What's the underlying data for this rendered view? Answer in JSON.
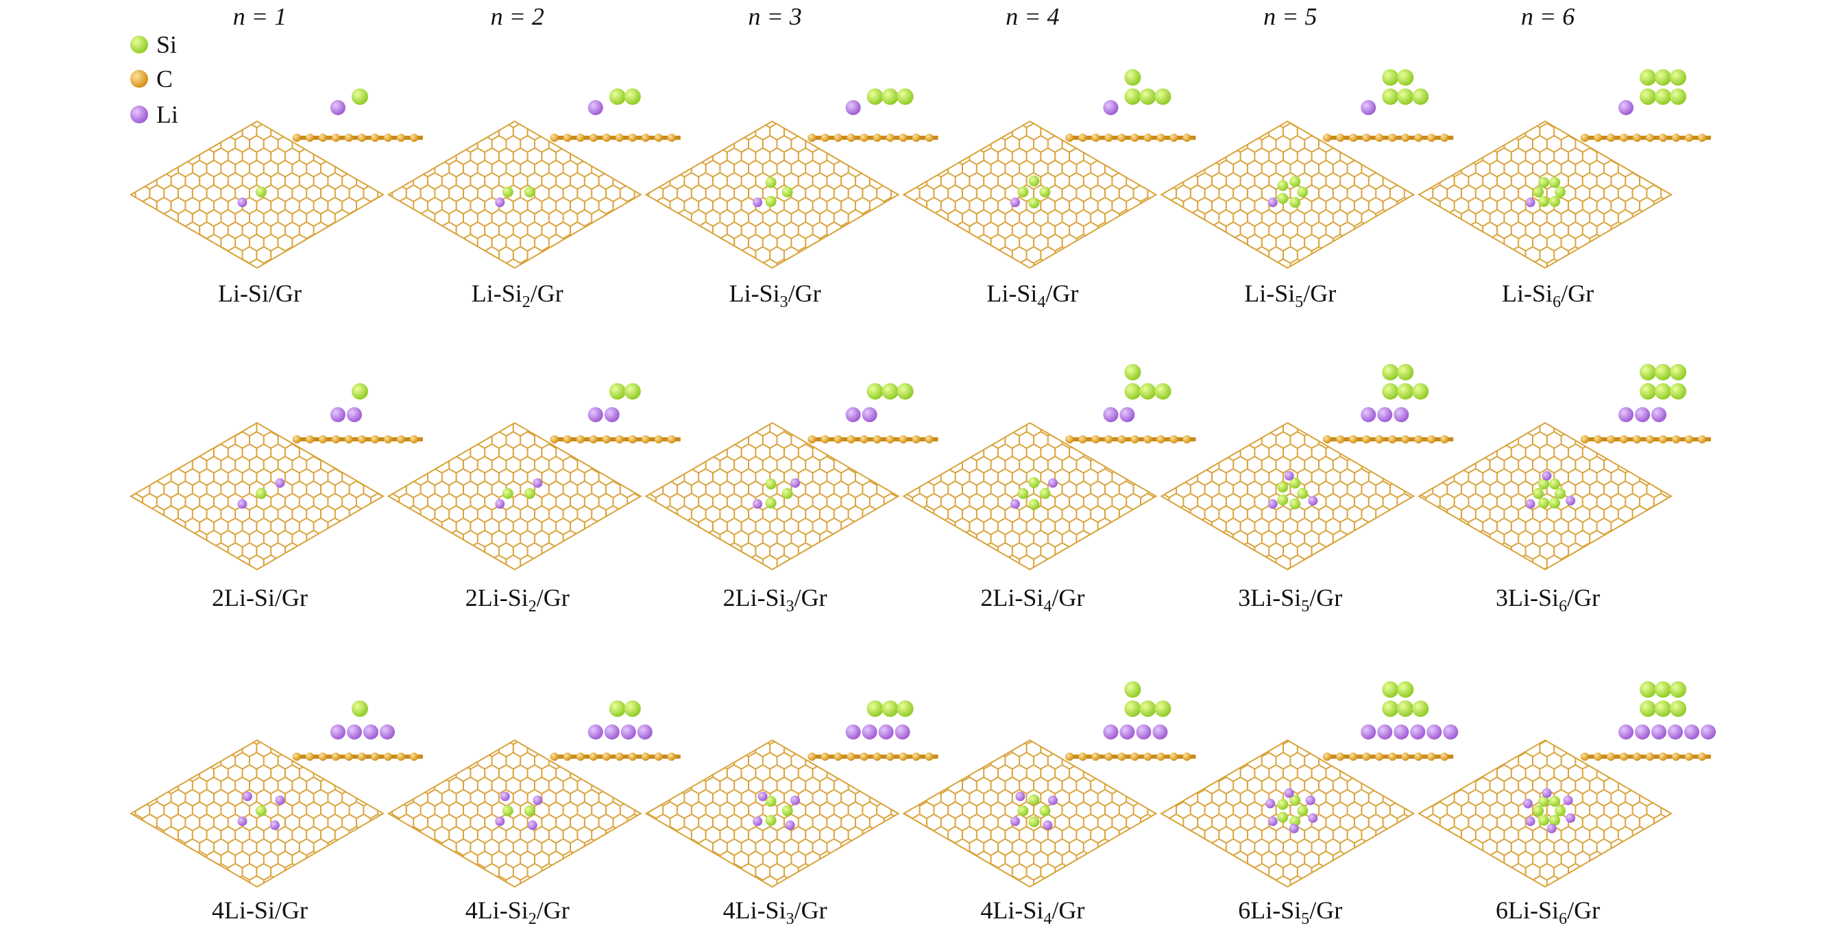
{
  "headers": [
    "n = 1",
    "n = 2",
    "n = 3",
    "n = 4",
    "n = 5",
    "n = 6"
  ],
  "legend": [
    "Si",
    "C",
    "Li"
  ],
  "panels": [
    [
      {
        "pre": "Li-Si/Gr"
      },
      {
        "pre": "Li-Si",
        "sub": "2",
        "post": "/Gr"
      },
      {
        "pre": "Li-Si",
        "sub": "3",
        "post": "/Gr"
      },
      {
        "pre": "Li-Si",
        "sub": "4",
        "post": "/Gr"
      },
      {
        "pre": "Li-Si",
        "sub": "5",
        "post": "/Gr"
      },
      {
        "pre": "Li-Si",
        "sub": "6",
        "post": "/Gr"
      }
    ],
    [
      {
        "pre": "2Li-Si/Gr"
      },
      {
        "pre": "2Li-Si",
        "sub": "2",
        "post": "/Gr"
      },
      {
        "pre": "2Li-Si",
        "sub": "3",
        "post": "/Gr"
      },
      {
        "pre": "2Li-Si",
        "sub": "4",
        "post": "/Gr"
      },
      {
        "pre": "3Li-Si",
        "sub": "5",
        "post": "/Gr"
      },
      {
        "pre": "3Li-Si",
        "sub": "6",
        "post": "/Gr"
      }
    ],
    [
      {
        "pre": "4Li-Si/Gr"
      },
      {
        "pre": "4Li-Si",
        "sub": "2",
        "post": "/Gr"
      },
      {
        "pre": "4Li-Si",
        "sub": "3",
        "post": "/Gr"
      },
      {
        "pre": "4Li-Si",
        "sub": "4",
        "post": "/Gr"
      },
      {
        "pre": "6Li-Si",
        "sub": "5",
        "post": "/Gr"
      },
      {
        "pre": "6Li-Si",
        "sub": "6",
        "post": "/Gr"
      }
    ]
  ]
}
